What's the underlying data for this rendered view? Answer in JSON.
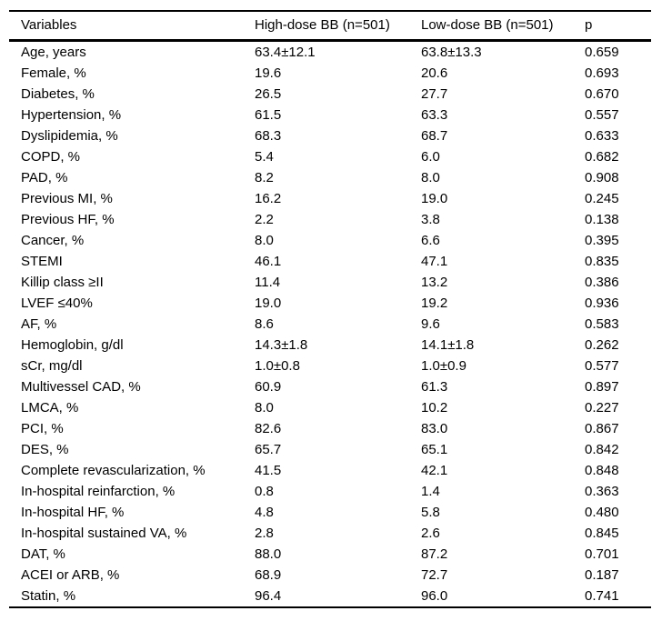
{
  "table": {
    "columns": [
      "Variables",
      "High-dose BB (n=501)",
      "Low-dose BB (n=501)",
      "p"
    ],
    "rows": [
      {
        "variable": "Age, years",
        "high": "63.4±12.1",
        "low": "63.8±13.3",
        "p": "0.659"
      },
      {
        "variable": "Female, %",
        "high": "19.6",
        "low": "20.6",
        "p": "0.693"
      },
      {
        "variable": "Diabetes, %",
        "high": "26.5",
        "low": "27.7",
        "p": "0.670"
      },
      {
        "variable": "Hypertension, %",
        "high": "61.5",
        "low": "63.3",
        "p": "0.557"
      },
      {
        "variable": "Dyslipidemia, %",
        "high": "68.3",
        "low": "68.7",
        "p": "0.633"
      },
      {
        "variable": "COPD, %",
        "high": "5.4",
        "low": "6.0",
        "p": "0.682"
      },
      {
        "variable": "PAD, %",
        "high": "8.2",
        "low": "8.0",
        "p": "0.908"
      },
      {
        "variable": "Previous MI, %",
        "high": "16.2",
        "low": "19.0",
        "p": "0.245"
      },
      {
        "variable": "Previous HF, %",
        "high": "2.2",
        "low": "3.8",
        "p": "0.138"
      },
      {
        "variable": "Cancer, %",
        "high": "8.0",
        "low": "6.6",
        "p": "0.395"
      },
      {
        "variable": "STEMI",
        "high": "46.1",
        "low": "47.1",
        "p": "0.835"
      },
      {
        "variable": "Killip class ≥II",
        "high": "11.4",
        "low": "13.2",
        "p": "0.386"
      },
      {
        "variable": "LVEF ≤40%",
        "high": "19.0",
        "low": "19.2",
        "p": "0.936"
      },
      {
        "variable": "AF, %",
        "high": "8.6",
        "low": "9.6",
        "p": "0.583"
      },
      {
        "variable": "Hemoglobin, g/dl",
        "high": "14.3±1.8",
        "low": "14.1±1.8",
        "p": "0.262"
      },
      {
        "variable": "sCr, mg/dl",
        "high": "1.0±0.8",
        "low": "1.0±0.9",
        "p": "0.577"
      },
      {
        "variable": "Multivessel CAD, %",
        "high": "60.9",
        "low": "61.3",
        "p": "0.897"
      },
      {
        "variable": "LMCA, %",
        "high": "8.0",
        "low": "10.2",
        "p": "0.227"
      },
      {
        "variable": "PCI, %",
        "high": "82.6",
        "low": "83.0",
        "p": "0.867"
      },
      {
        "variable": "DES, %",
        "high": "65.7",
        "low": "65.1",
        "p": "0.842"
      },
      {
        "variable": "Complete revascularization, %",
        "high": "41.5",
        "low": "42.1",
        "p": "0.848"
      },
      {
        "variable": "In-hospital reinfarction, %",
        "high": "0.8",
        "low": "1.4",
        "p": "0.363"
      },
      {
        "variable": "In-hospital HF, %",
        "high": "4.8",
        "low": "5.8",
        "p": "0.480"
      },
      {
        "variable": "In-hospital sustained VA, %",
        "high": "2.8",
        "low": "2.6",
        "p": "0.845"
      },
      {
        "variable": "DAT, %",
        "high": "88.0",
        "low": "87.2",
        "p": "0.701"
      },
      {
        "variable": "ACEI or ARB, %",
        "high": "68.9",
        "low": "72.7",
        "p": "0.187"
      },
      {
        "variable": "Statin, %",
        "high": "96.4",
        "low": "96.0",
        "p": "0.741"
      }
    ]
  }
}
